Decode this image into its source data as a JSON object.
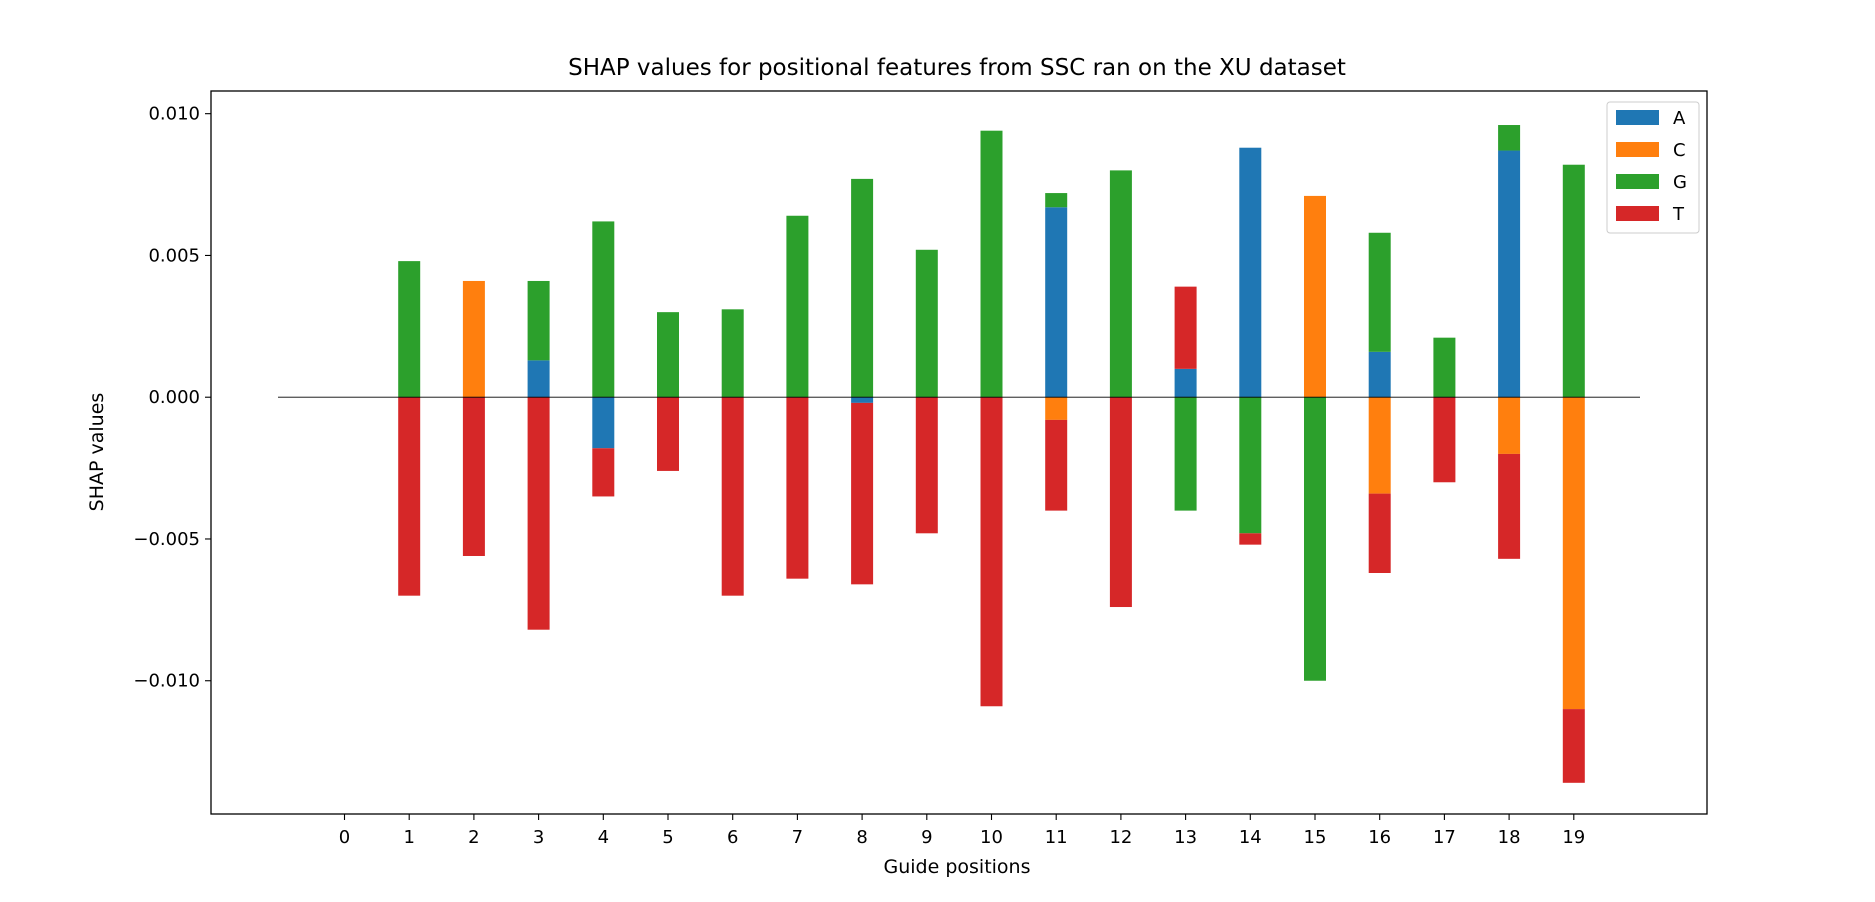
{
  "chart_data": {
    "type": "bar",
    "stacked": true,
    "title": "SHAP values for positional features from SSC ran on the XU dataset",
    "xlabel": "Guide positions",
    "ylabel": "SHAP values",
    "categories": [
      "0",
      "1",
      "2",
      "3",
      "4",
      "5",
      "6",
      "7",
      "8",
      "9",
      "10",
      "11",
      "12",
      "13",
      "14",
      "15",
      "16",
      "17",
      "18",
      "19"
    ],
    "ylim": [
      -0.0147,
      0.0108
    ],
    "yticks": [
      0.01,
      0.005,
      0.0,
      -0.005,
      -0.01
    ],
    "ytick_labels": [
      "0.010",
      "0.005",
      "0.000",
      "−0.005",
      "−0.010"
    ],
    "zero_line": true,
    "grid": false,
    "legend_position": "top-right",
    "series": [
      {
        "name": "A",
        "color": "#1f77b4",
        "values": [
          0,
          0,
          0,
          0.0013,
          -0.0018,
          0,
          0,
          0,
          -0.0002,
          0,
          0,
          0.0067,
          0,
          0.001,
          0.0088,
          0,
          0.0016,
          0,
          0.0087,
          0
        ]
      },
      {
        "name": "C",
        "color": "#ff7f0e",
        "values": [
          0,
          0,
          0.0041,
          0,
          0,
          0,
          0,
          0,
          0,
          0,
          0,
          -0.0008,
          0,
          0,
          0,
          0.0071,
          -0.0034,
          0,
          -0.002,
          -0.011
        ]
      },
      {
        "name": "G",
        "color": "#2ca02c",
        "values": [
          0,
          0.0048,
          0,
          0.0028,
          0.0062,
          0.003,
          0.0031,
          0.0064,
          0.0077,
          0.0052,
          0.0094,
          0.0005,
          0.008,
          -0.004,
          -0.0048,
          -0.01,
          0.0042,
          0.0021,
          0.0009,
          0.0082
        ]
      },
      {
        "name": "T",
        "color": "#d62728",
        "values": [
          0,
          -0.007,
          -0.0056,
          -0.0082,
          -0.0017,
          -0.0026,
          -0.007,
          -0.0064,
          -0.0064,
          -0.0048,
          -0.0109,
          -0.0032,
          -0.0074,
          0.0029,
          -0.0004,
          0,
          -0.0028,
          -0.003,
          -0.0037,
          -0.0026
        ]
      }
    ]
  }
}
